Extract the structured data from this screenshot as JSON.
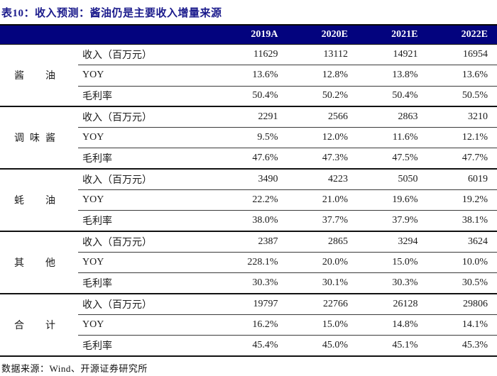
{
  "title": "表10：收入预测：酱油仍是主要收入增量来源",
  "footer": "数据来源：Wind、开源证券研究所",
  "colors": {
    "header_band": "#03037e",
    "title_text": "#1b1b8c",
    "band_text": "#ffffff",
    "rule_thin": "#3a3a3a",
    "rule_heavy": "#111111"
  },
  "table": {
    "col_headers": [
      "2019A",
      "2020E",
      "2021E",
      "2022E"
    ],
    "groups": [
      {
        "label": "酱油",
        "rows": [
          {
            "metric": "收入（百万元）",
            "values": [
              "11629",
              "13112",
              "14921",
              "16954"
            ]
          },
          {
            "metric": "YOY",
            "values": [
              "13.6%",
              "12.8%",
              "13.8%",
              "13.6%"
            ]
          },
          {
            "metric": "毛利率",
            "values": [
              "50.4%",
              "50.2%",
              "50.4%",
              "50.5%"
            ]
          }
        ]
      },
      {
        "label": "调味酱",
        "rows": [
          {
            "metric": "收入（百万元）",
            "values": [
              "2291",
              "2566",
              "2863",
              "3210"
            ]
          },
          {
            "metric": "YOY",
            "values": [
              "9.5%",
              "12.0%",
              "11.6%",
              "12.1%"
            ]
          },
          {
            "metric": "毛利率",
            "values": [
              "47.6%",
              "47.3%",
              "47.5%",
              "47.7%"
            ]
          }
        ]
      },
      {
        "label": "蚝油",
        "rows": [
          {
            "metric": "收入（百万元）",
            "values": [
              "3490",
              "4223",
              "5050",
              "6019"
            ]
          },
          {
            "metric": "YOY",
            "values": [
              "22.2%",
              "21.0%",
              "19.6%",
              "19.2%"
            ]
          },
          {
            "metric": "毛利率",
            "values": [
              "38.0%",
              "37.7%",
              "37.9%",
              "38.1%"
            ]
          }
        ]
      },
      {
        "label": "其他",
        "rows": [
          {
            "metric": "收入（百万元）",
            "values": [
              "2387",
              "2865",
              "3294",
              "3624"
            ]
          },
          {
            "metric": "YOY",
            "values": [
              "228.1%",
              "20.0%",
              "15.0%",
              "10.0%"
            ]
          },
          {
            "metric": "毛利率",
            "values": [
              "30.3%",
              "30.1%",
              "30.3%",
              "30.5%"
            ]
          }
        ]
      },
      {
        "label": "合计",
        "rows": [
          {
            "metric": "收入（百万元）",
            "values": [
              "19797",
              "22766",
              "26128",
              "29806"
            ]
          },
          {
            "metric": "YOY",
            "values": [
              "16.2%",
              "15.0%",
              "14.8%",
              "14.1%"
            ]
          },
          {
            "metric": "毛利率",
            "values": [
              "45.4%",
              "45.0%",
              "45.1%",
              "45.3%"
            ]
          }
        ]
      }
    ]
  }
}
